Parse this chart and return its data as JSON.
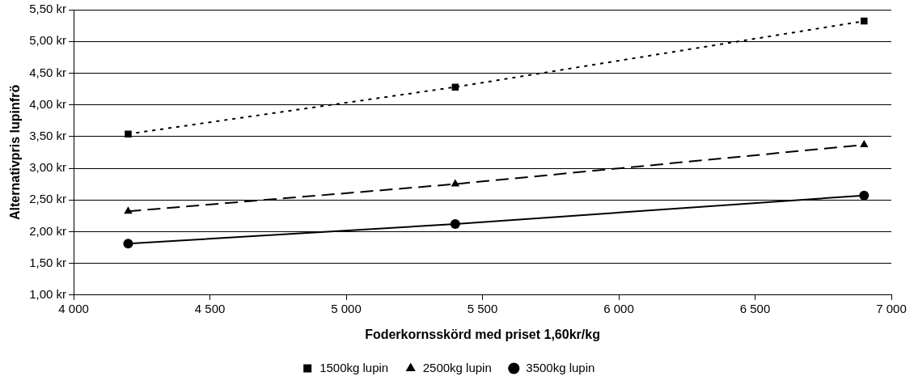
{
  "chart_data": {
    "type": "line",
    "xlabel": "Foderkornsskörd med priset 1,60kr/kg",
    "ylabel": "Alternativpris lupinfrö",
    "x": [
      4200,
      5400,
      6900
    ],
    "series": [
      {
        "name": "1500kg lupin",
        "color": "#000000",
        "values": [
          3.54,
          4.28,
          5.32
        ],
        "marker": "square",
        "line_style": "dotted"
      },
      {
        "name": "2500kg lupin",
        "color": "#000000",
        "values": [
          2.32,
          2.75,
          3.37
        ],
        "marker": "triangle",
        "line_style": "dashed"
      },
      {
        "name": "3500kg lupin",
        "color": "#000000",
        "values": [
          1.81,
          2.12,
          2.57
        ],
        "marker": "circle",
        "line_style": "solid"
      }
    ],
    "xlim": [
      4000,
      7000
    ],
    "xticks": [
      {
        "value": 4000,
        "label": "4 000"
      },
      {
        "value": 4500,
        "label": "4 500"
      },
      {
        "value": 5000,
        "label": "5 000"
      },
      {
        "value": 5500,
        "label": "5 500"
      },
      {
        "value": 6000,
        "label": "6 000"
      },
      {
        "value": 6500,
        "label": "6 500"
      },
      {
        "value": 7000,
        "label": "7 000"
      }
    ],
    "ylim": [
      1,
      5.5
    ],
    "yticks": [
      {
        "value": 1,
        "label": "1,00 kr"
      },
      {
        "value": 1.5,
        "label": "1,50 kr"
      },
      {
        "value": 2,
        "label": "2,00 kr"
      },
      {
        "value": 2.5,
        "label": "2,50 kr"
      },
      {
        "value": 3,
        "label": "3,00 kr"
      },
      {
        "value": 3.5,
        "label": "3,50 kr"
      },
      {
        "value": 4,
        "label": "4,00 kr"
      },
      {
        "value": 4.5,
        "label": "4,50 kr"
      },
      {
        "value": 5,
        "label": "5,00 kr"
      },
      {
        "value": 5.5,
        "label": "5,50 kr"
      }
    ],
    "grid": "y",
    "legend": "bottom"
  }
}
